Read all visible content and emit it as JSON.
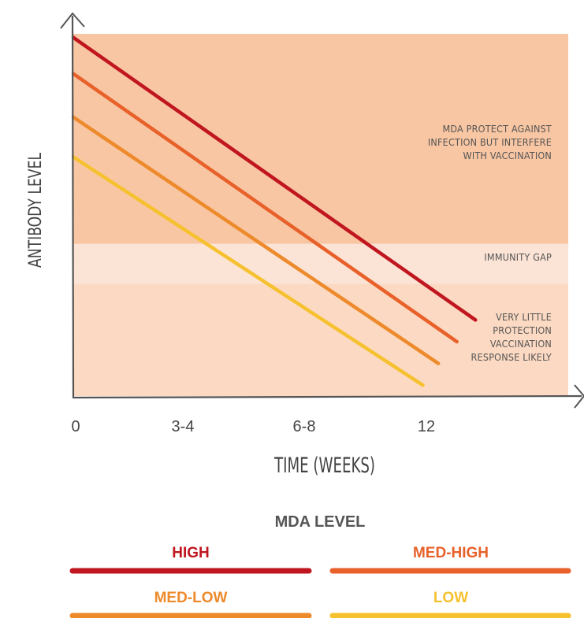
{
  "chart_data": {
    "type": "line",
    "xlabel": "TIME (WEEKS)",
    "ylabel": "ANTIBODY LEVEL",
    "x_ticks": [
      "0",
      "3-4",
      "6-8",
      "12"
    ],
    "regions": [
      {
        "name": "mda-protect",
        "lines": [
          "MDA PROTECT AGAINST",
          "INFECTION BUT INTERFERE",
          "WITH VACCINATION"
        ],
        "color": "#f8c6a3",
        "y_from": 0.42,
        "y_to": 1.0
      },
      {
        "name": "immunity-gap",
        "lines": [
          "IMMUNITY GAP"
        ],
        "color": "#fbe3d6",
        "y_from": 0.31,
        "y_to": 0.42
      },
      {
        "name": "little-protection",
        "lines": [
          "VERY LITTLE",
          "PROTECTION",
          "VACCINATION",
          "RESPONSE LIKELY"
        ],
        "color": "#fcd9c2",
        "y_from": 0.0,
        "y_to": 0.31
      }
    ],
    "series": [
      {
        "name": "HIGH",
        "color": "#c0161f",
        "x": [
          0,
          13.0
        ],
        "y": [
          0.99,
          0.21
        ]
      },
      {
        "name": "MED-HIGH",
        "color": "#e8612a",
        "x": [
          0,
          12.4
        ],
        "y": [
          0.89,
          0.15
        ]
      },
      {
        "name": "MED-LOW",
        "color": "#ed8a2b",
        "x": [
          0,
          11.8
        ],
        "y": [
          0.77,
          0.09
        ]
      },
      {
        "name": "LOW",
        "color": "#f6c12f",
        "x": [
          0,
          11.3
        ],
        "y": [
          0.66,
          0.03
        ]
      }
    ],
    "xlim": [
      0,
      16
    ],
    "ylim": [
      0,
      1
    ],
    "legend_title": "MDA LEVEL",
    "legend_placement": "bottom"
  }
}
